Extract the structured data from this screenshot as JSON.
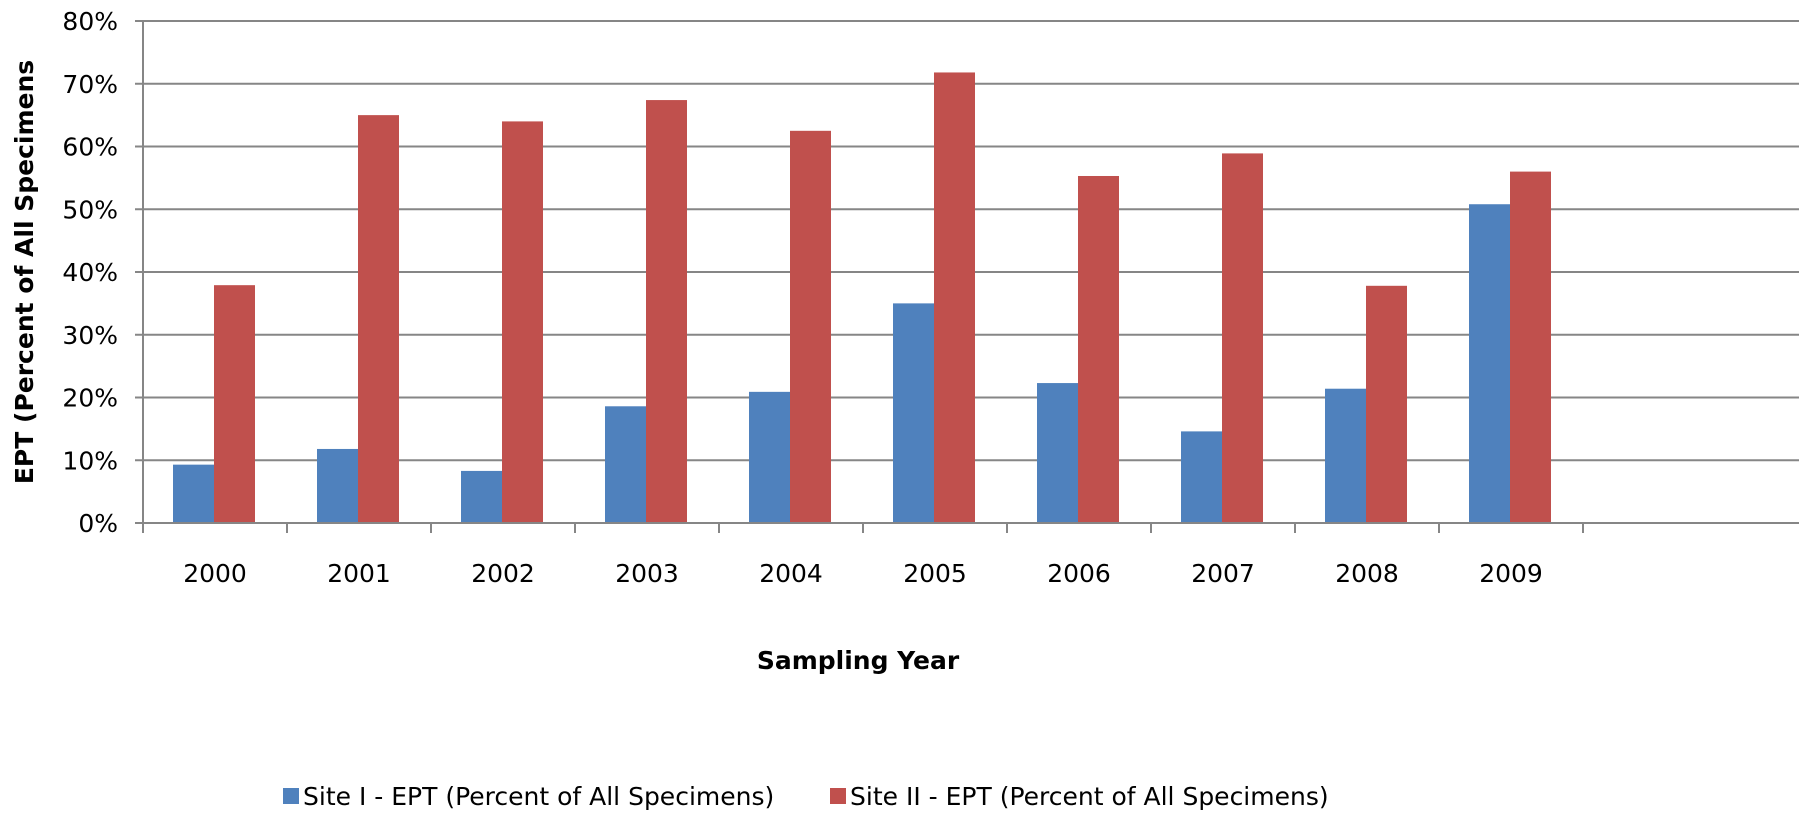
{
  "chart_data": {
    "type": "bar",
    "title": "",
    "xlabel": "Sampling Year",
    "ylabel": "EPT (Percent of All Specimens",
    "categories": [
      "2000",
      "2001",
      "2002",
      "2003",
      "2004",
      "2005",
      "2006",
      "2007",
      "2008",
      "2009"
    ],
    "series": [
      {
        "name": "Site I - EPT (Percent of All Specimens)",
        "color": "#4f81bd",
        "values": [
          9.3,
          11.8,
          8.3,
          18.6,
          20.9,
          35.0,
          22.3,
          14.6,
          21.4,
          50.8
        ]
      },
      {
        "name": "Site II - EPT (Percent of All Specimens)",
        "color": "#c0504d",
        "values": [
          37.9,
          65.0,
          64.0,
          67.4,
          62.5,
          71.8,
          55.3,
          58.9,
          37.8,
          56.0
        ]
      }
    ],
    "ylim": [
      0,
      80
    ],
    "yticks": [
      "0%",
      "10%",
      "20%",
      "30%",
      "40%",
      "50%",
      "60%",
      "70%",
      "80%"
    ],
    "grid": true,
    "gridline_color": "#868686",
    "legend_position": "bottom"
  }
}
